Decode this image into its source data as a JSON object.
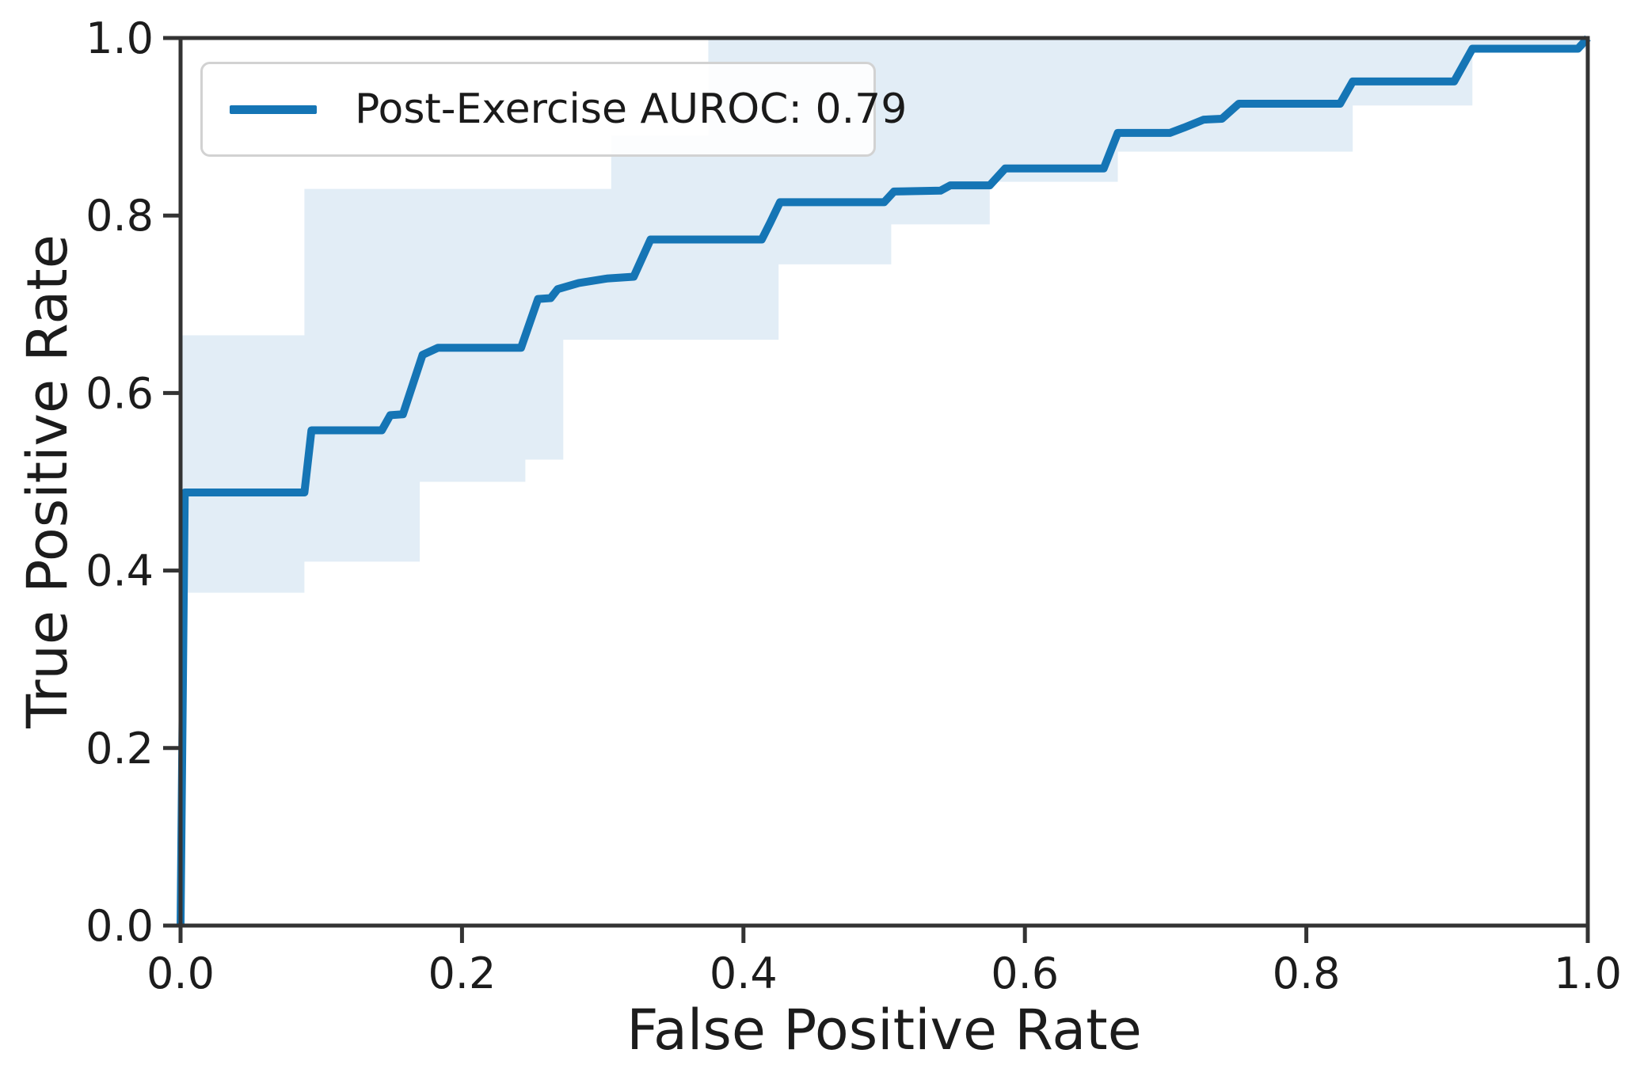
{
  "chart_data": {
    "type": "line",
    "subtype": "roc-curve",
    "title": "",
    "xlabel": "False Positive Rate",
    "ylabel": "True Positive Rate",
    "xlim": [
      0.0,
      1.0
    ],
    "ylim": [
      0.0,
      1.0
    ],
    "grid": false,
    "x_ticks": [
      {
        "value": 0.0,
        "label": "0.0"
      },
      {
        "value": 0.2,
        "label": "0.2"
      },
      {
        "value": 0.4,
        "label": "0.4"
      },
      {
        "value": 0.6,
        "label": "0.6"
      },
      {
        "value": 0.8,
        "label": "0.8"
      },
      {
        "value": 1.0,
        "label": "1.0"
      }
    ],
    "y_ticks": [
      {
        "value": 0.0,
        "label": "0.0"
      },
      {
        "value": 0.2,
        "label": "0.2"
      },
      {
        "value": 0.4,
        "label": "0.4"
      },
      {
        "value": 0.6,
        "label": "0.6"
      },
      {
        "value": 0.8,
        "label": "0.8"
      },
      {
        "value": 1.0,
        "label": "1.0"
      }
    ],
    "legend": {
      "position": "upper left",
      "label": "Post-Exercise AUROC: 0.79"
    },
    "auroc": 0.79,
    "colors": {
      "curve": "#1575b5",
      "band_fill": "#e2edf6",
      "spine": "#333333",
      "text": "#1c1c1c",
      "legend_border": "#d2d2d2"
    },
    "series": [
      {
        "name": "Post-Exercise ROC curve",
        "color": "#1575b5",
        "points": [
          [
            0.0,
            0.0
          ],
          [
            0.003,
            0.488
          ],
          [
            0.088,
            0.488
          ],
          [
            0.093,
            0.558
          ],
          [
            0.143,
            0.558
          ],
          [
            0.149,
            0.575
          ],
          [
            0.158,
            0.576
          ],
          [
            0.172,
            0.643
          ],
          [
            0.183,
            0.651
          ],
          [
            0.242,
            0.651
          ],
          [
            0.254,
            0.706
          ],
          [
            0.263,
            0.707
          ],
          [
            0.268,
            0.717
          ],
          [
            0.283,
            0.724
          ],
          [
            0.303,
            0.729
          ],
          [
            0.322,
            0.731
          ],
          [
            0.334,
            0.773
          ],
          [
            0.413,
            0.773
          ],
          [
            0.419,
            0.792
          ],
          [
            0.426,
            0.815
          ],
          [
            0.5,
            0.815
          ],
          [
            0.507,
            0.827
          ],
          [
            0.54,
            0.828
          ],
          [
            0.547,
            0.834
          ],
          [
            0.575,
            0.834
          ],
          [
            0.586,
            0.853
          ],
          [
            0.656,
            0.853
          ],
          [
            0.666,
            0.893
          ],
          [
            0.703,
            0.893
          ],
          [
            0.713,
            0.899
          ],
          [
            0.727,
            0.908
          ],
          [
            0.74,
            0.909
          ],
          [
            0.752,
            0.926
          ],
          [
            0.824,
            0.926
          ],
          [
            0.833,
            0.951
          ],
          [
            0.905,
            0.951
          ],
          [
            0.918,
            0.988
          ],
          [
            0.993,
            0.988
          ],
          [
            1.0,
            1.0
          ]
        ]
      }
    ],
    "confidence_band": {
      "style": "step-after",
      "fill": "#e2edf6",
      "upper_steps": [
        [
          0.0,
          0.665
        ],
        [
          0.088,
          0.83
        ],
        [
          0.306,
          0.89
        ],
        [
          0.375,
          1.0
        ]
      ],
      "lower_steps": [
        [
          0.0,
          0.375
        ],
        [
          0.088,
          0.41
        ],
        [
          0.17,
          0.5
        ],
        [
          0.245,
          0.525
        ],
        [
          0.272,
          0.66
        ],
        [
          0.425,
          0.745
        ],
        [
          0.505,
          0.79
        ],
        [
          0.575,
          0.838
        ],
        [
          0.666,
          0.872
        ],
        [
          0.833,
          0.924
        ],
        [
          0.918,
          0.988
        ]
      ]
    }
  }
}
